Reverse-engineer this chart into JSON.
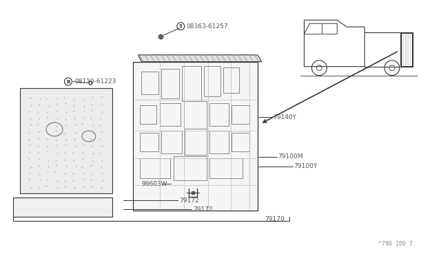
{
  "bg_color": "#ffffff",
  "line_color": "#333333",
  "label_color": "#555555",
  "watermark": "^790 100 7",
  "circ_s_label": "S",
  "circ_b_label": "B",
  "part_label_08363": "08363-61257",
  "part_label_08120": "08120-61223",
  "part_label_79140Y": "79140Y",
  "part_label_79100M": "79100M",
  "part_label_79100Y": "79100Y",
  "part_label_99603W": "99603W",
  "part_label_79172": "79172",
  "part_label_79170": "79170"
}
